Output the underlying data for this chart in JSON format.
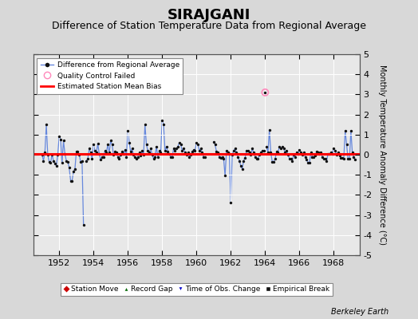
{
  "title": "SIRAJGANI",
  "subtitle": "Difference of Station Temperature Data from Regional Average",
  "ylabel": "Monthly Temperature Anomaly Difference (°C)",
  "xlabel_bottom": "Berkeley Earth",
  "ylim": [
    -5,
    5
  ],
  "xlim": [
    1950.5,
    1969.5
  ],
  "yticks": [
    -5,
    -4,
    -3,
    -2,
    -1,
    0,
    1,
    2,
    3,
    4,
    5
  ],
  "xticks": [
    1952,
    1954,
    1956,
    1958,
    1960,
    1962,
    1964,
    1966,
    1968
  ],
  "bias_value": 0.05,
  "background_color": "#d8d8d8",
  "plot_bg_color": "#e8e8e8",
  "line_color": "#6688dd",
  "dot_color": "#111111",
  "bias_color": "#ff0000",
  "qc_color": "#ff88bb",
  "grid_color": "#ffffff",
  "title_fontsize": 13,
  "subtitle_fontsize": 9,
  "tick_fontsize": 8,
  "data": {
    "years_months": [
      1951.0,
      1951.083,
      1951.167,
      1951.25,
      1951.333,
      1951.417,
      1951.5,
      1951.583,
      1951.667,
      1951.75,
      1951.833,
      1951.917,
      1952.0,
      1952.083,
      1952.167,
      1952.25,
      1952.333,
      1952.417,
      1952.5,
      1952.583,
      1952.667,
      1952.75,
      1952.833,
      1952.917,
      1953.0,
      1953.083,
      1953.167,
      1953.25,
      1953.333,
      1953.417,
      1953.583,
      1953.667,
      1953.75,
      1953.833,
      1953.917,
      1954.0,
      1954.083,
      1954.167,
      1954.25,
      1954.333,
      1954.417,
      1954.5,
      1954.583,
      1954.667,
      1954.75,
      1954.833,
      1954.917,
      1955.0,
      1955.083,
      1955.167,
      1955.25,
      1955.333,
      1955.417,
      1955.5,
      1955.583,
      1955.667,
      1955.75,
      1955.833,
      1955.917,
      1956.0,
      1956.083,
      1956.167,
      1956.25,
      1956.333,
      1956.417,
      1956.5,
      1956.583,
      1956.667,
      1956.75,
      1956.833,
      1956.917,
      1957.0,
      1957.083,
      1957.167,
      1957.25,
      1957.333,
      1957.417,
      1957.5,
      1957.583,
      1957.667,
      1957.75,
      1957.833,
      1957.917,
      1958.0,
      1958.083,
      1958.167,
      1958.25,
      1958.333,
      1958.417,
      1958.5,
      1958.583,
      1958.667,
      1958.75,
      1958.833,
      1958.917,
      1959.0,
      1959.083,
      1959.167,
      1959.25,
      1959.333,
      1959.417,
      1959.5,
      1959.583,
      1959.667,
      1959.75,
      1959.833,
      1959.917,
      1960.0,
      1960.083,
      1960.167,
      1960.25,
      1960.333,
      1960.417,
      1960.5,
      1961.0,
      1961.083,
      1961.167,
      1961.25,
      1961.333,
      1961.417,
      1961.5,
      1961.583,
      1961.667,
      1961.75,
      1961.833,
      1961.917,
      1962.0,
      1962.083,
      1962.167,
      1962.25,
      1962.333,
      1962.417,
      1962.5,
      1962.583,
      1962.667,
      1962.75,
      1962.833,
      1962.917,
      1963.0,
      1963.083,
      1963.167,
      1963.25,
      1963.333,
      1963.417,
      1963.5,
      1963.583,
      1963.667,
      1963.75,
      1963.833,
      1963.917,
      1964.083,
      1964.167,
      1964.25,
      1964.333,
      1964.417,
      1964.5,
      1964.583,
      1964.667,
      1964.75,
      1964.833,
      1964.917,
      1965.0,
      1965.083,
      1965.167,
      1965.25,
      1965.333,
      1965.417,
      1965.5,
      1965.583,
      1965.667,
      1965.75,
      1965.833,
      1965.917,
      1966.0,
      1966.083,
      1966.167,
      1966.25,
      1966.333,
      1966.417,
      1966.5,
      1966.583,
      1966.667,
      1966.75,
      1966.833,
      1966.917,
      1967.0,
      1967.083,
      1967.167,
      1967.25,
      1967.333,
      1967.417,
      1967.5,
      1967.583,
      1967.667,
      1967.75,
      1967.833,
      1967.917,
      1968.0,
      1968.083,
      1968.167,
      1968.25,
      1968.333,
      1968.417,
      1968.5,
      1968.583,
      1968.667,
      1968.75,
      1968.833,
      1968.917,
      1969.0,
      1969.083,
      1969.167,
      1969.25
    ],
    "values": [
      0.0,
      -0.3,
      0.1,
      1.5,
      0.0,
      -0.35,
      -0.4,
      0.0,
      -0.3,
      -0.45,
      -0.55,
      0.0,
      0.9,
      0.75,
      -0.4,
      0.7,
      0.05,
      -0.3,
      -0.35,
      -0.65,
      -1.3,
      -1.3,
      -0.85,
      -0.7,
      0.15,
      0.15,
      0.0,
      -0.35,
      -0.3,
      -3.5,
      -0.3,
      -0.2,
      0.3,
      0.1,
      -0.2,
      0.5,
      0.2,
      0.1,
      0.55,
      0.05,
      -0.25,
      -0.1,
      -0.1,
      0.2,
      0.1,
      0.5,
      0.1,
      0.7,
      0.5,
      0.0,
      0.15,
      0.1,
      -0.1,
      -0.2,
      0.0,
      0.15,
      0.05,
      0.25,
      -0.1,
      1.2,
      0.6,
      0.15,
      0.3,
      0.0,
      -0.1,
      -0.2,
      -0.1,
      0.1,
      -0.05,
      0.2,
      0.0,
      1.5,
      0.5,
      0.2,
      0.1,
      0.3,
      0.0,
      -0.2,
      -0.1,
      0.4,
      -0.1,
      0.2,
      0.1,
      1.7,
      1.5,
      0.2,
      0.4,
      0.15,
      0.05,
      -0.1,
      -0.1,
      0.3,
      0.2,
      0.3,
      0.4,
      0.6,
      0.5,
      0.2,
      0.3,
      0.1,
      0.0,
      0.1,
      -0.1,
      0.0,
      0.15,
      0.25,
      0.2,
      0.6,
      0.5,
      0.2,
      0.3,
      0.1,
      -0.1,
      -0.1,
      0.65,
      0.5,
      0.15,
      0.1,
      -0.1,
      -0.15,
      -0.1,
      -0.2,
      -1.05,
      0.2,
      0.1,
      0.05,
      -2.4,
      0.0,
      0.2,
      0.3,
      0.1,
      -0.1,
      -0.3,
      -0.55,
      -0.7,
      -0.3,
      -0.15,
      0.2,
      0.2,
      0.1,
      0.0,
      0.3,
      0.1,
      -0.1,
      -0.2,
      -0.2,
      0.0,
      0.1,
      0.2,
      0.2,
      0.4,
      0.1,
      1.25,
      0.1,
      -0.35,
      -0.35,
      -0.2,
      0.15,
      0.1,
      0.4,
      0.3,
      0.4,
      0.3,
      0.1,
      0.2,
      0.0,
      -0.2,
      -0.2,
      -0.3,
      0.0,
      -0.1,
      0.1,
      0.05,
      0.25,
      0.1,
      0.0,
      0.1,
      -0.1,
      -0.25,
      -0.4,
      -0.4,
      0.1,
      -0.1,
      -0.1,
      -0.05,
      0.15,
      0.1,
      0.05,
      0.1,
      -0.1,
      -0.2,
      -0.2,
      -0.3,
      0.05,
      0.05,
      0.1,
      0.05,
      0.3,
      0.2,
      0.0,
      0.1,
      -0.05,
      -0.15,
      -0.15,
      -0.2,
      1.2,
      0.5,
      -0.2,
      -0.2,
      1.2,
      0.1,
      -0.1,
      -0.25
    ],
    "isolated_qc_points": [
      [
        1964.0,
        3.1
      ]
    ]
  }
}
